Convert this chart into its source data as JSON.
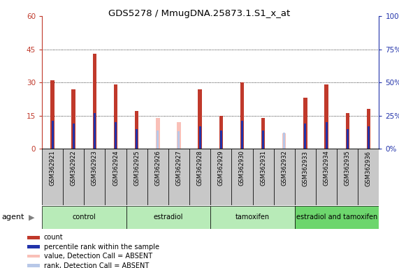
{
  "title": "GDS5278 / MmugDNA.25873.1.S1_x_at",
  "samples": [
    "GSM362921",
    "GSM362922",
    "GSM362923",
    "GSM362924",
    "GSM362925",
    "GSM362926",
    "GSM362927",
    "GSM362928",
    "GSM362929",
    "GSM362930",
    "GSM362931",
    "GSM362932",
    "GSM362933",
    "GSM362934",
    "GSM362935",
    "GSM362936"
  ],
  "count_red": [
    31,
    27,
    43,
    29,
    17,
    null,
    null,
    27,
    15,
    30,
    14,
    null,
    23,
    29,
    16,
    18
  ],
  "count_pink": [
    null,
    null,
    null,
    null,
    null,
    14,
    12,
    null,
    null,
    null,
    null,
    7,
    null,
    null,
    null,
    null
  ],
  "rank_blue": [
    21,
    19,
    27,
    20,
    15,
    null,
    null,
    17,
    14,
    21,
    14,
    null,
    19,
    20,
    15,
    17
  ],
  "rank_lightblue": [
    null,
    null,
    null,
    null,
    null,
    14,
    13,
    null,
    null,
    null,
    null,
    12,
    null,
    null,
    null,
    null
  ],
  "groups": [
    {
      "label": "control",
      "start": 0,
      "end": 3,
      "color": "#a8e6a8"
    },
    {
      "label": "estradiol",
      "start": 4,
      "end": 7,
      "color": "#a8e6a8"
    },
    {
      "label": "tamoxifen",
      "start": 8,
      "end": 11,
      "color": "#a8e6a8"
    },
    {
      "label": "estradiol and tamoxifen",
      "start": 12,
      "end": 15,
      "color": "#5cd65c"
    }
  ],
  "ylim_left": [
    0,
    60
  ],
  "ylim_right": [
    0,
    100
  ],
  "yticks_left": [
    0,
    15,
    30,
    45,
    60
  ],
  "ytick_labels_left": [
    "0",
    "15",
    "30",
    "45",
    "60"
  ],
  "yticks_right": [
    0,
    25,
    50,
    75,
    100
  ],
  "ytick_labels_right": [
    "0%",
    "25%",
    "50%",
    "75%",
    "100%"
  ],
  "red_color": "#c0392b",
  "blue_color": "#2233aa",
  "pink_color": "#f9c0b8",
  "lightblue_color": "#b8c8e8",
  "bg_color": "#ffffff",
  "label_bg_color": "#c8c8c8",
  "legend_items": [
    {
      "color": "#c0392b",
      "label": "count"
    },
    {
      "color": "#2233aa",
      "label": "percentile rank within the sample"
    },
    {
      "color": "#f9c0b8",
      "label": "value, Detection Call = ABSENT"
    },
    {
      "color": "#b8c8e8",
      "label": "rank, Detection Call = ABSENT"
    }
  ]
}
